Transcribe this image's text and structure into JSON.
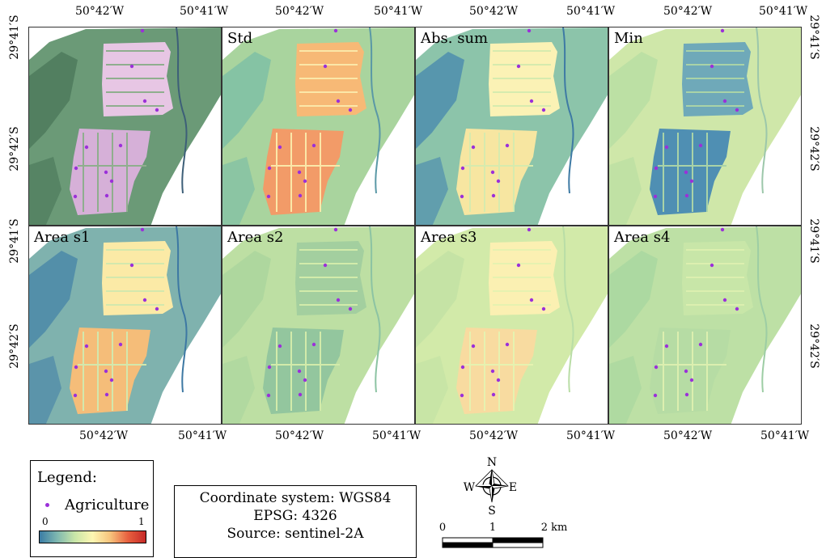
{
  "top_ticks": [
    "50°42′W",
    "50°41′W",
    "50°42′W",
    "50°41′W",
    "50°42′W",
    "50°41′W",
    "50°42′W",
    "50°41′W"
  ],
  "bottom_ticks": [
    "50°42′W",
    "50°41′W",
    "50°42′W",
    "50°41′W",
    "50°42′W",
    "50°41′W",
    "50°42′W",
    "50°41′W"
  ],
  "left_ticks": [
    "29°41′S",
    "29°42′S",
    "29°41′S",
    "29°42′S"
  ],
  "right_ticks": [
    "29°41′S",
    "29°42′S",
    "29°41′S",
    "29°42′S"
  ],
  "panels": [
    {
      "label": "",
      "style": "rgb"
    },
    {
      "label": "Std",
      "style": "std"
    },
    {
      "label": "Abs. sum",
      "style": "abs"
    },
    {
      "label": "Min",
      "style": "min"
    },
    {
      "label": "Area s1",
      "style": "s1"
    },
    {
      "label": "Area s2",
      "style": "s2"
    },
    {
      "label": "Area s3",
      "style": "s3"
    },
    {
      "label": "Area s4",
      "style": "s4"
    }
  ],
  "legend": {
    "title": "Legend:",
    "point_label": "Agriculture",
    "point_color": "#9b30d9",
    "ramp_min": "0",
    "ramp_max": "1",
    "ramp_colors": [
      "#3a7ca5",
      "#7fb8b0",
      "#c9e6a8",
      "#fdf6b2",
      "#f7c37c",
      "#e8603f",
      "#c62a28"
    ]
  },
  "info": {
    "coord_system": "Coordinate system: WGS84",
    "epsg": "EPSG: 4326",
    "source": "Source: sentinel-2A"
  },
  "compass": {
    "n": "N",
    "s": "S",
    "e": "E",
    "w": "W"
  },
  "scale_bar": {
    "labels": [
      "0",
      "1",
      "2 km"
    ]
  }
}
